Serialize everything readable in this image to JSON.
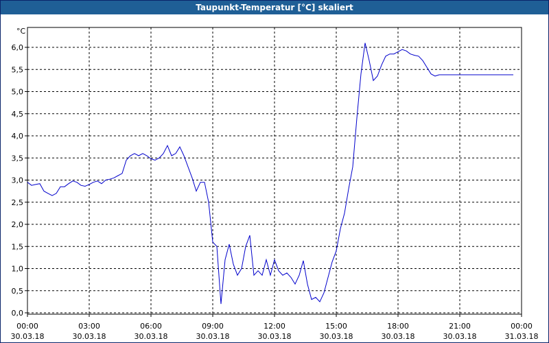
{
  "window": {
    "title": "Taupunkt-Temperatur [°C] skaliert"
  },
  "chart_data": {
    "type": "line",
    "title": "Taupunkt-Temperatur [°C] skaliert",
    "ylabel": "°C",
    "xlabel": "",
    "ylim": [
      0.0,
      6.0
    ],
    "y_ticks": [
      "0,0",
      "0,5",
      "1,0",
      "1,5",
      "2,0",
      "2,5",
      "3,0",
      "3,5",
      "4,0",
      "4,5",
      "5,0",
      "5,5",
      "6,0"
    ],
    "xlim_hours": [
      0,
      24
    ],
    "x_ticks": [
      {
        "time": "00:00",
        "date": "30.03.18"
      },
      {
        "time": "03:00",
        "date": "30.03.18"
      },
      {
        "time": "06:00",
        "date": "30.03.18"
      },
      {
        "time": "09:00",
        "date": "30.03.18"
      },
      {
        "time": "12:00",
        "date": "30.03.18"
      },
      {
        "time": "15:00",
        "date": "30.03.18"
      },
      {
        "time": "18:00",
        "date": "30.03.18"
      },
      {
        "time": "21:00",
        "date": "30.03.18"
      },
      {
        "time": "00:00",
        "date": "31.03.18"
      }
    ],
    "grid": true,
    "line_color": "#0000cc",
    "series": [
      {
        "x_hours": [
          0.0,
          0.2,
          0.4,
          0.6,
          0.8,
          1.0,
          1.2,
          1.4,
          1.6,
          1.8,
          2.0,
          2.2,
          2.4,
          2.6,
          2.8,
          3.0,
          3.2,
          3.4,
          3.6,
          3.8,
          4.0,
          4.2,
          4.4,
          4.6,
          4.8,
          5.0,
          5.2,
          5.4,
          5.6,
          5.8,
          6.0,
          6.2,
          6.4,
          6.6,
          6.8,
          7.0,
          7.2,
          7.4,
          7.6,
          7.8,
          8.0,
          8.2,
          8.4,
          8.6,
          8.8,
          9.0,
          9.2,
          9.4,
          9.6,
          9.8,
          10.0,
          10.2,
          10.4,
          10.6,
          10.8,
          11.0,
          11.2,
          11.4,
          11.6,
          11.8,
          12.0,
          12.2,
          12.4,
          12.6,
          12.8,
          13.0,
          13.2,
          13.4,
          13.6,
          13.8,
          14.0,
          14.2,
          14.4,
          14.6,
          14.8,
          15.0,
          15.2,
          15.4,
          15.6,
          15.8,
          16.0,
          16.2,
          16.4,
          16.6,
          16.8,
          17.0,
          17.2,
          17.4,
          17.6,
          17.8,
          18.0,
          18.2,
          18.4,
          18.6,
          18.8,
          19.0,
          19.2,
          19.4,
          19.6,
          19.8,
          20.0,
          20.2,
          20.4,
          20.6,
          20.8,
          21.0,
          21.2,
          21.4,
          21.6,
          21.8,
          22.0,
          22.2,
          22.4,
          22.6,
          22.8,
          23.0,
          23.2,
          23.4,
          23.6
        ],
        "y": [
          2.95,
          2.88,
          2.9,
          2.92,
          2.75,
          2.7,
          2.65,
          2.7,
          2.85,
          2.85,
          2.92,
          2.98,
          2.95,
          2.88,
          2.86,
          2.9,
          2.95,
          2.98,
          2.92,
          3.0,
          3.02,
          3.05,
          3.1,
          3.15,
          3.45,
          3.55,
          3.6,
          3.55,
          3.6,
          3.55,
          3.48,
          3.45,
          3.5,
          3.6,
          3.78,
          3.55,
          3.6,
          3.75,
          3.55,
          3.3,
          3.05,
          2.75,
          2.95,
          2.95,
          2.5,
          1.6,
          1.5,
          0.2,
          1.2,
          1.55,
          1.1,
          0.85,
          1.0,
          1.5,
          1.75,
          0.85,
          0.95,
          0.85,
          1.2,
          0.85,
          1.2,
          0.95,
          0.85,
          0.9,
          0.8,
          0.65,
          0.85,
          1.18,
          0.65,
          0.3,
          0.35,
          0.25,
          0.45,
          0.8,
          1.15,
          1.4,
          1.9,
          2.25,
          2.8,
          3.3,
          4.4,
          5.4,
          6.1,
          5.7,
          5.25,
          5.35,
          5.6,
          5.8,
          5.85,
          5.85,
          5.9,
          5.95,
          5.92,
          5.85,
          5.82,
          5.8,
          5.7,
          5.55,
          5.4,
          5.35,
          5.38,
          5.38,
          5.38,
          5.38,
          5.38,
          5.38,
          5.38,
          5.38,
          5.38,
          5.38,
          5.38,
          5.38,
          5.38,
          5.38,
          5.38,
          5.38,
          5.38,
          5.38,
          5.38
        ]
      }
    ]
  }
}
